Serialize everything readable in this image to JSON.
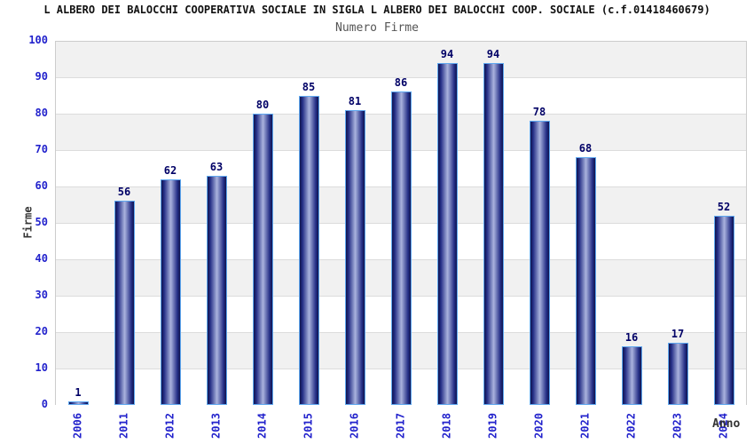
{
  "chart_data": {
    "type": "bar",
    "title": "L ALBERO DEI BALOCCHI COOPERATIVA SOCIALE IN SIGLA L ALBERO DEI BALOCCHI COOP. SOCIALE (c.f.01418460679)",
    "subtitle": "Numero Firme",
    "xlabel": "Anno",
    "ylabel": "Firme",
    "categories": [
      "2006",
      "2011",
      "2012",
      "2013",
      "2014",
      "2015",
      "2016",
      "2017",
      "2018",
      "2019",
      "2020",
      "2021",
      "2022",
      "2023",
      "2024"
    ],
    "values": [
      1,
      56,
      62,
      63,
      80,
      85,
      81,
      86,
      94,
      94,
      78,
      68,
      16,
      17,
      52
    ],
    "ylim": [
      0,
      100
    ],
    "ytick_step": 10,
    "grid": true,
    "legend_position": "none",
    "value_labels_shown": true,
    "colors": {
      "title_text": "#111111",
      "subtitle_text": "#555555",
      "axis_tick_label": "#2222cc",
      "value_label": "#000066",
      "axis_title_text": "#333333",
      "bar_border": "#5fa8f0",
      "bar_edge": "#10154f",
      "bar_mid": "#232d85",
      "bar_center": "#aab3de",
      "band_gray": "#f1f1f1",
      "band_white": "#ffffff",
      "gridline": "#dcdcdc",
      "plot_border": "#cccccc",
      "background": "#ffffff"
    }
  }
}
